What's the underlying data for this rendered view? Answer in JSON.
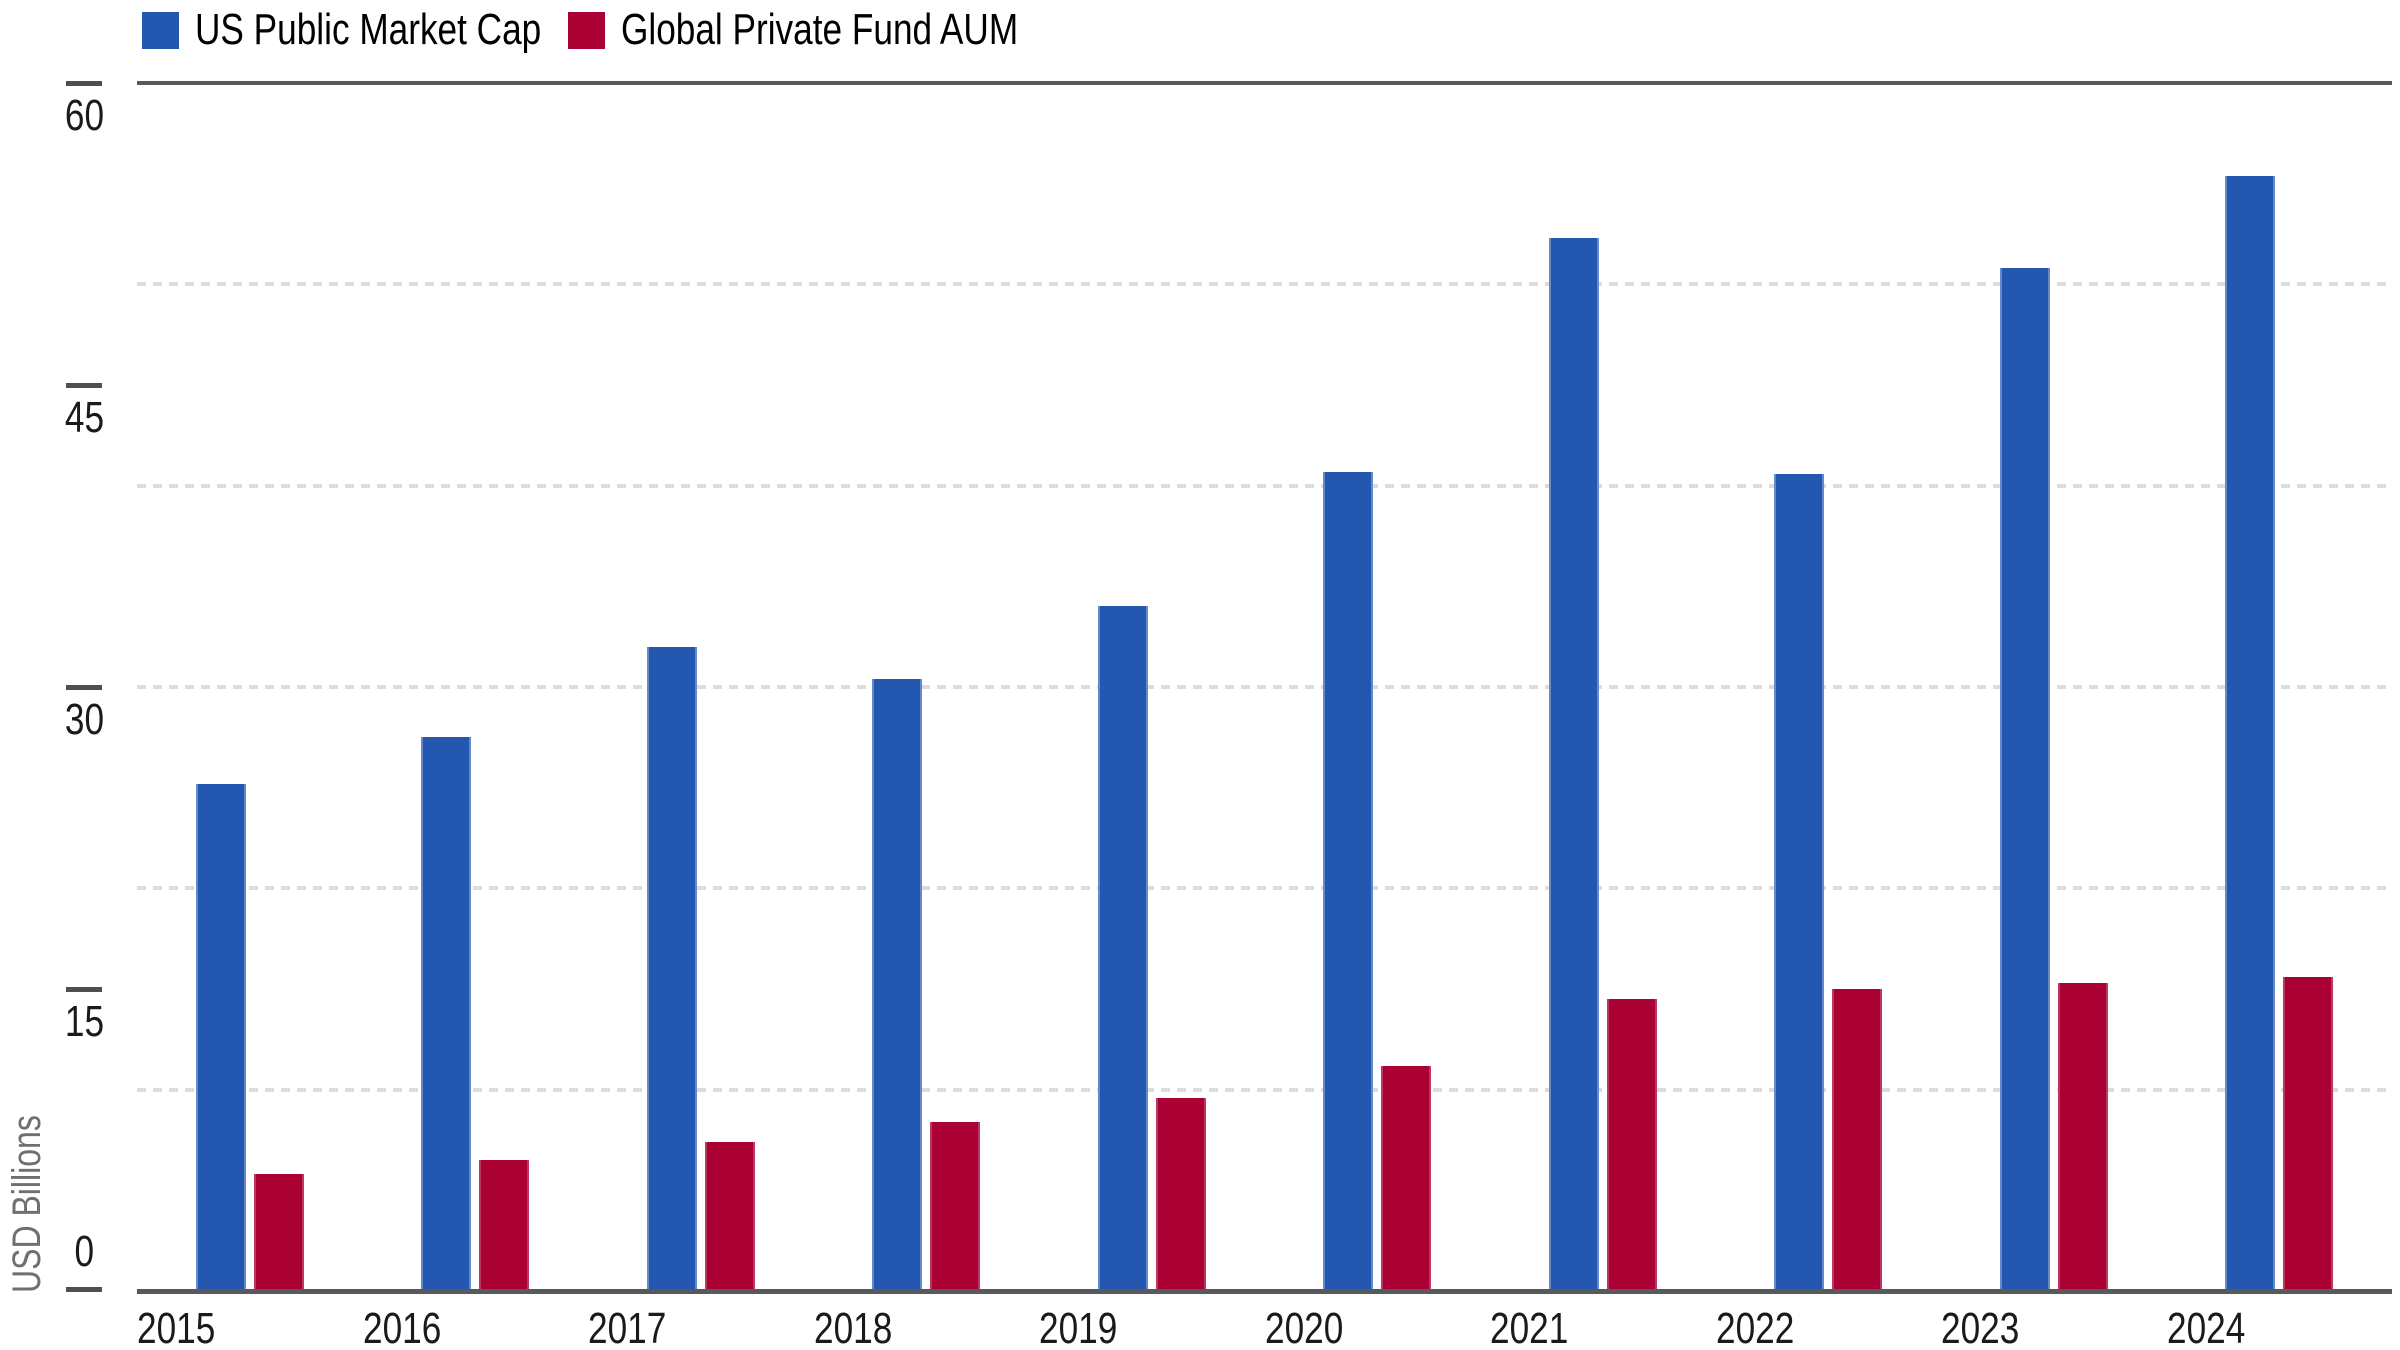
{
  "legend": {
    "items": [
      {
        "label": "US Public Market Cap",
        "color": "#2457AF"
      },
      {
        "label": "Global Private Fund AUM",
        "color": "#AA0033"
      }
    ]
  },
  "y_axis": {
    "label": "USD Billions",
    "tick_labels": [
      "0",
      "15",
      "30",
      "45",
      "60"
    ]
  },
  "x_axis": {
    "tick_labels": [
      "2015",
      "2016",
      "2017",
      "2018",
      "2019",
      "2020",
      "2021",
      "2022",
      "2023",
      "2024"
    ]
  },
  "chart_data": {
    "type": "bar",
    "title": "",
    "categories": [
      "2015",
      "2016",
      "2017",
      "2018",
      "2019",
      "2020",
      "2021",
      "2022",
      "2023",
      "2024"
    ],
    "series": [
      {
        "name": "US Public Market Cap",
        "color": "#2457AF",
        "values": [
          25.2,
          27.5,
          32.0,
          30.4,
          34.0,
          40.7,
          52.3,
          40.6,
          50.8,
          55.4
        ]
      },
      {
        "name": "Global Private Fund AUM",
        "color": "#AA0033",
        "values": [
          5.8,
          6.5,
          7.4,
          8.4,
          9.6,
          11.2,
          14.5,
          15.0,
          15.3,
          15.6
        ]
      }
    ],
    "xlabel": "",
    "ylabel": "USD Billions",
    "ylim": [
      0,
      60
    ],
    "yticks": [
      0,
      15,
      30,
      45,
      60
    ],
    "gridline_values": [
      10,
      20,
      30,
      40,
      50
    ],
    "grid": "horizontal-dashed",
    "legend_position": "top-left",
    "axis_colors": {
      "line": "#58595b",
      "grid": "#dcdcdc",
      "tick_text": "#1a1a1a",
      "axis_title_text": "#6f6f6f"
    }
  }
}
